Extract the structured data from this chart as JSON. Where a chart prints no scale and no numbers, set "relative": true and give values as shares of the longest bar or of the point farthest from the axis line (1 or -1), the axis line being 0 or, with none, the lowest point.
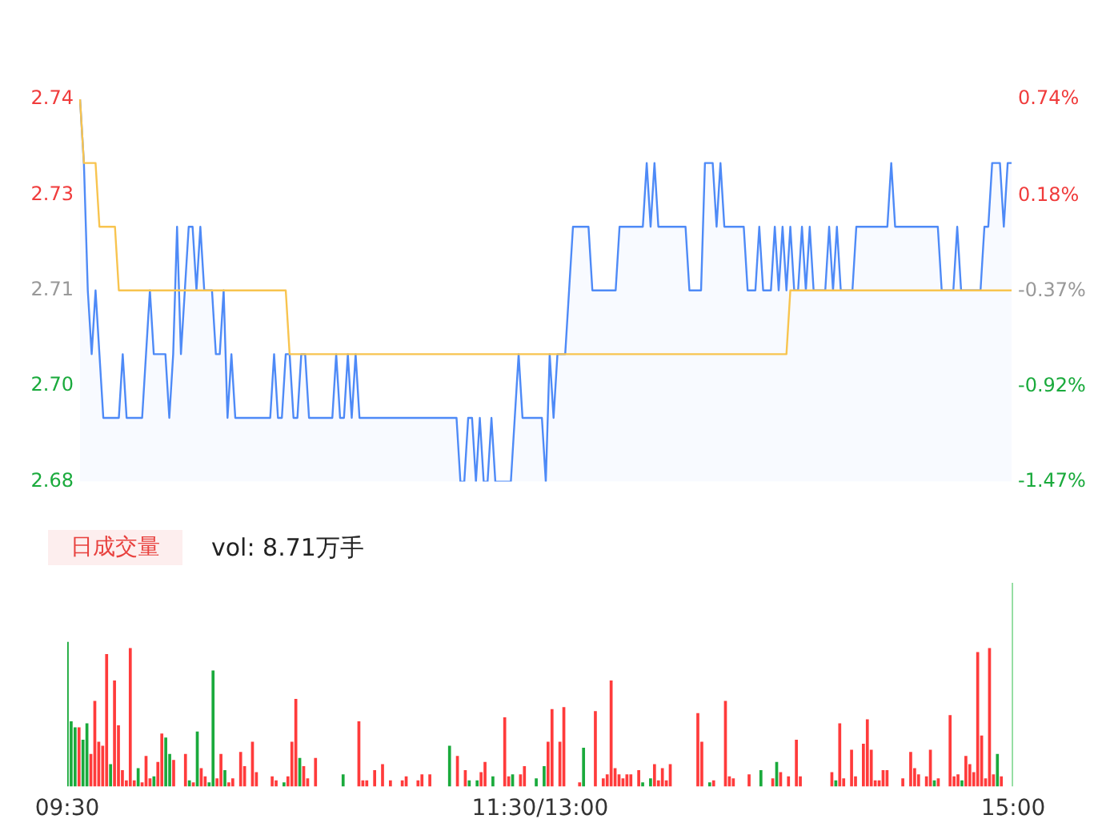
{
  "chart_data": [
    {
      "type": "line",
      "categories": [
        null,
        null,
        null,
        null,
        null,
        null,
        null,
        null,
        null,
        null,
        null,
        null,
        null,
        null,
        null,
        null,
        null,
        null,
        null,
        null,
        null,
        null,
        null,
        null,
        null,
        null,
        null,
        null,
        null,
        null,
        null,
        null,
        null,
        null,
        null,
        null,
        null,
        null,
        null,
        null,
        null,
        null,
        null,
        null,
        null,
        null,
        null,
        null,
        null,
        null,
        null,
        null,
        null,
        null,
        null,
        null,
        null,
        null,
        null,
        null,
        null,
        null,
        null,
        null,
        null,
        null,
        null,
        null,
        null,
        null,
        null,
        null,
        null,
        null,
        null,
        null,
        null,
        null,
        null,
        null,
        null,
        null,
        null,
        null,
        null,
        null,
        null,
        null,
        null,
        null,
        null,
        null,
        null,
        null,
        null,
        null,
        null,
        null,
        null,
        null,
        null,
        null,
        null,
        null,
        null,
        null,
        null,
        null,
        null,
        null,
        null,
        null,
        null,
        null,
        null,
        null,
        null,
        null,
        null,
        null,
        null,
        null,
        null,
        null,
        null,
        null,
        null,
        null,
        null,
        null,
        null,
        null,
        null,
        null,
        null,
        null,
        null,
        null,
        null,
        null,
        null,
        null,
        null,
        null,
        null,
        null,
        null,
        null,
        null,
        null,
        null,
        null,
        null,
        null,
        null,
        null,
        null,
        null,
        null,
        null,
        null,
        null,
        null,
        null,
        null,
        null,
        null,
        null,
        null,
        null,
        null,
        null,
        null,
        null,
        null,
        null,
        null,
        null,
        null,
        null,
        null,
        null,
        null,
        null,
        null,
        null,
        null,
        null,
        null,
        null,
        null,
        null,
        null,
        null,
        null,
        null,
        null,
        null,
        null,
        null,
        null,
        null,
        null,
        null,
        null,
        null,
        null,
        null,
        null,
        null,
        null,
        null,
        null,
        null,
        null,
        null,
        null,
        null,
        null,
        null,
        null,
        null,
        null,
        null,
        null,
        null,
        null,
        null,
        null,
        null,
        null,
        null,
        null,
        null,
        null,
        null,
        null,
        null,
        null,
        null,
        null
      ],
      "ylim": [
        2.68,
        2.74
      ],
      "yticks": [
        2.74,
        {
          "value": 2.725,
          "label": "2.73"
        },
        2.71,
        {
          "value": 2.695,
          "label": "2.70"
        },
        2.68
      ],
      "y2lim": [
        -1.47,
        0.74
      ],
      "y2ticks": [
        {
          "value": 0.74,
          "label": "0.74%"
        },
        {
          "value": 0.18,
          "label": "0.18%"
        },
        {
          "value": -0.37,
          "label": "-0.37%"
        },
        {
          "value": -0.92,
          "label": "-0.92%"
        },
        {
          "value": -1.47,
          "label": "-1.47%"
        }
      ],
      "tick_labels": "y",
      "marker": "none",
      "series": [
        {
          "type": "area",
          "color": "#4e8af7",
          "values": [
            2.74,
            2.73,
            2.71,
            2.7,
            2.71,
            2.7,
            2.69,
            2.69,
            2.69,
            2.69,
            2.69,
            2.7,
            2.69,
            2.69,
            2.69,
            2.69,
            2.69,
            2.7,
            2.71,
            2.7,
            2.7,
            2.7,
            2.7,
            2.69,
            2.7,
            2.72,
            2.7,
            2.71,
            2.72,
            2.72,
            2.71,
            2.72,
            2.71,
            2.71,
            2.71,
            2.7,
            2.7,
            2.71,
            2.69,
            2.7,
            2.69,
            2.69,
            2.69,
            2.69,
            2.69,
            2.69,
            2.69,
            2.69,
            2.69,
            2.69,
            2.7,
            2.69,
            2.69,
            2.7,
            2.7,
            2.69,
            2.69,
            2.7,
            2.7,
            2.69,
            2.69,
            2.69,
            2.69,
            2.69,
            2.69,
            2.69,
            2.7,
            2.69,
            2.69,
            2.7,
            2.69,
            2.7,
            2.69,
            2.69,
            2.69,
            2.69,
            2.69,
            2.69,
            2.69,
            2.69,
            2.69,
            2.69,
            2.69,
            2.69,
            2.69,
            2.69,
            2.69,
            2.69,
            2.69,
            2.69,
            2.69,
            2.69,
            2.69,
            2.69,
            2.69,
            2.69,
            2.69,
            2.69,
            2.68,
            2.68,
            2.69,
            2.69,
            2.68,
            2.69,
            2.68,
            2.68,
            2.69,
            2.68,
            2.68,
            2.68,
            2.68,
            2.68,
            2.69,
            2.7,
            2.69,
            2.69,
            2.69,
            2.69,
            2.69,
            2.69,
            2.68,
            2.7,
            2.69,
            2.7,
            2.7,
            2.7,
            2.71,
            2.72,
            2.72,
            2.72,
            2.72,
            2.72,
            2.71,
            2.71,
            2.71,
            2.71,
            2.71,
            2.71,
            2.71,
            2.72,
            2.72,
            2.72,
            2.72,
            2.72,
            2.72,
            2.72,
            2.73,
            2.72,
            2.73,
            2.72,
            2.72,
            2.72,
            2.72,
            2.72,
            2.72,
            2.72,
            2.72,
            2.71,
            2.71,
            2.71,
            2.71,
            2.73,
            2.73,
            2.73,
            2.72,
            2.73,
            2.72,
            2.72,
            2.72,
            2.72,
            2.72,
            2.72,
            2.71,
            2.71,
            2.71,
            2.72,
            2.71,
            2.71,
            2.71,
            2.72,
            2.71,
            2.72,
            2.71,
            2.72,
            2.71,
            2.71,
            2.72,
            2.71,
            2.72,
            2.71,
            2.71,
            2.71,
            2.71,
            2.72,
            2.71,
            2.72,
            2.71,
            2.71,
            2.71,
            2.71,
            2.72,
            2.72,
            2.72,
            2.72,
            2.72,
            2.72,
            2.72,
            2.72,
            2.72,
            2.73,
            2.72,
            2.72,
            2.72,
            2.72,
            2.72,
            2.72,
            2.72,
            2.72,
            2.72,
            2.72,
            2.72,
            2.72,
            2.71,
            2.71,
            2.71,
            2.71,
            2.72,
            2.71,
            2.71,
            2.71,
            2.71,
            2.71,
            2.71,
            2.72,
            2.72,
            2.73,
            2.73,
            2.73,
            2.72,
            2.73,
            2.73
          ]
        },
        {
          "type": "line",
          "color": "#f8c44f",
          "values": [
            2.74,
            2.73,
            2.73,
            2.73,
            2.73,
            2.72,
            2.72,
            2.72,
            2.72,
            2.72,
            2.71,
            2.71,
            2.71,
            2.71,
            2.71,
            2.71,
            2.71,
            2.71,
            2.71,
            2.71,
            2.71,
            2.71,
            2.71,
            2.71,
            2.71,
            2.71,
            2.71,
            2.71,
            2.71,
            2.71,
            2.71,
            2.71,
            2.71,
            2.71,
            2.71,
            2.71,
            2.71,
            2.71,
            2.71,
            2.71,
            2.71,
            2.71,
            2.71,
            2.71,
            2.71,
            2.71,
            2.71,
            2.71,
            2.71,
            2.71,
            2.71,
            2.71,
            2.71,
            2.71,
            2.7,
            2.7,
            2.7,
            2.7,
            2.7,
            2.7,
            2.7,
            2.7,
            2.7,
            2.7,
            2.7,
            2.7,
            2.7,
            2.7,
            2.7,
            2.7,
            2.7,
            2.7,
            2.7,
            2.7,
            2.7,
            2.7,
            2.7,
            2.7,
            2.7,
            2.7,
            2.7,
            2.7,
            2.7,
            2.7,
            2.7,
            2.7,
            2.7,
            2.7,
            2.7,
            2.7,
            2.7,
            2.7,
            2.7,
            2.7,
            2.7,
            2.7,
            2.7,
            2.7,
            2.7,
            2.7,
            2.7,
            2.7,
            2.7,
            2.7,
            2.7,
            2.7,
            2.7,
            2.7,
            2.7,
            2.7,
            2.7,
            2.7,
            2.7,
            2.7,
            2.7,
            2.7,
            2.7,
            2.7,
            2.7,
            2.7,
            2.7,
            2.7,
            2.7,
            2.7,
            2.7,
            2.7,
            2.7,
            2.7,
            2.7,
            2.7,
            2.7,
            2.7,
            2.7,
            2.7,
            2.7,
            2.7,
            2.7,
            2.7,
            2.7,
            2.7,
            2.7,
            2.7,
            2.7,
            2.7,
            2.7,
            2.7,
            2.7,
            2.7,
            2.7,
            2.7,
            2.7,
            2.7,
            2.7,
            2.7,
            2.7,
            2.7,
            2.7,
            2.7,
            2.7,
            2.7,
            2.7,
            2.7,
            2.7,
            2.7,
            2.7,
            2.7,
            2.7,
            2.7,
            2.7,
            2.7,
            2.7,
            2.7,
            2.7,
            2.7,
            2.7,
            2.7,
            2.7,
            2.7,
            2.7,
            2.7,
            2.7,
            2.7,
            2.7,
            2.71,
            2.71,
            2.71,
            2.71,
            2.71,
            2.71,
            2.71,
            2.71,
            2.71,
            2.71,
            2.71,
            2.71,
            2.71,
            2.71,
            2.71,
            2.71,
            2.71,
            2.71,
            2.71,
            2.71,
            2.71,
            2.71,
            2.71,
            2.71,
            2.71,
            2.71,
            2.71,
            2.71,
            2.71,
            2.71,
            2.71,
            2.71,
            2.71,
            2.71,
            2.71,
            2.71,
            2.71,
            2.71,
            2.71,
            2.71,
            2.71,
            2.71,
            2.71,
            2.71,
            2.71,
            2.71,
            2.71,
            2.71,
            2.71,
            2.71,
            2.71,
            2.71,
            2.71,
            2.71,
            2.71,
            2.71,
            2.71,
            2.71
          ]
        }
      ]
    },
    {
      "type": "bar",
      "title": "日成交量",
      "annotations": [
        "vol: 8.71万手"
      ],
      "relative": true,
      "tick_labels": "x",
      "categories": [
        "09:30",
        null,
        null,
        null,
        null,
        null,
        null,
        null,
        null,
        null,
        null,
        null,
        null,
        null,
        null,
        null,
        null,
        null,
        null,
        null,
        null,
        null,
        null,
        null,
        null,
        null,
        null,
        null,
        null,
        null,
        null,
        null,
        null,
        null,
        null,
        null,
        null,
        null,
        null,
        null,
        null,
        null,
        null,
        null,
        null,
        null,
        null,
        null,
        null,
        null,
        null,
        null,
        null,
        null,
        null,
        null,
        null,
        null,
        null,
        null,
        null,
        null,
        null,
        null,
        null,
        null,
        null,
        null,
        null,
        null,
        null,
        null,
        null,
        null,
        null,
        null,
        null,
        null,
        null,
        null,
        null,
        null,
        null,
        null,
        null,
        null,
        null,
        null,
        null,
        null,
        null,
        null,
        null,
        null,
        null,
        null,
        null,
        null,
        null,
        null,
        null,
        null,
        null,
        null,
        null,
        null,
        null,
        null,
        null,
        null,
        null,
        null,
        null,
        null,
        null,
        null,
        null,
        null,
        null,
        null,
        "11:30/13:00",
        null,
        null,
        null,
        null,
        null,
        null,
        null,
        null,
        null,
        null,
        null,
        null,
        null,
        null,
        null,
        null,
        null,
        null,
        null,
        null,
        null,
        null,
        null,
        null,
        null,
        null,
        null,
        null,
        null,
        null,
        null,
        null,
        null,
        null,
        null,
        null,
        null,
        null,
        null,
        null,
        null,
        null,
        null,
        null,
        null,
        null,
        null,
        null,
        null,
        null,
        null,
        null,
        null,
        null,
        null,
        null,
        null,
        null,
        null,
        null,
        null,
        null,
        null,
        null,
        null,
        null,
        null,
        null,
        null,
        null,
        null,
        null,
        null,
        null,
        null,
        null,
        null,
        null,
        null,
        null,
        null,
        null,
        null,
        null,
        null,
        null,
        null,
        null,
        null,
        null,
        null,
        null,
        null,
        null,
        null,
        null,
        null,
        null,
        null,
        null,
        null,
        null,
        null,
        null,
        null,
        null,
        null,
        null,
        null,
        null,
        null,
        null,
        null,
        null,
        null,
        null,
        null,
        null,
        null,
        "15:00"
      ],
      "values": [
        0.71,
        0.32,
        0.29,
        0.29,
        0.23,
        0.31,
        0.16,
        0.42,
        0.22,
        0.2,
        0.65,
        0.11,
        0.52,
        0.3,
        0.08,
        0.03,
        0.68,
        0.03,
        0.09,
        0.02,
        0.15,
        0.04,
        0.05,
        0.12,
        0.26,
        0.24,
        0.16,
        0.13,
        null,
        null,
        0.16,
        0.03,
        0.02,
        0.27,
        0.09,
        0.05,
        0.02,
        0.57,
        0.04,
        0.16,
        0.08,
        0.02,
        0.04,
        null,
        0.17,
        0.1,
        null,
        0.22,
        0.07,
        null,
        null,
        null,
        0.05,
        0.03,
        null,
        0.02,
        0.05,
        0.22,
        0.43,
        0.14,
        0.1,
        0.04,
        null,
        0.14,
        null,
        null,
        null,
        null,
        null,
        null,
        0.06,
        null,
        null,
        null,
        0.32,
        0.03,
        0.03,
        null,
        0.08,
        null,
        0.11,
        null,
        0.03,
        null,
        null,
        0.03,
        0.05,
        null,
        null,
        0.03,
        0.06,
        null,
        0.06,
        null,
        null,
        null,
        null,
        0.2,
        null,
        0.15,
        null,
        0.08,
        0.03,
        null,
        0.03,
        0.07,
        0.12,
        null,
        0.05,
        null,
        null,
        0.34,
        0.05,
        0.06,
        null,
        0.06,
        0.1,
        null,
        null,
        0.04,
        null,
        0.1,
        0.22,
        0.38,
        null,
        0.22,
        0.39,
        null,
        null,
        null,
        0.02,
        0.19,
        null,
        null,
        0.37,
        null,
        0.04,
        0.06,
        0.52,
        0.09,
        0.06,
        0.04,
        0.06,
        0.06,
        null,
        0.08,
        0.02,
        null,
        0.04,
        0.11,
        0.03,
        0.09,
        0.03,
        0.11,
        null,
        null,
        null,
        null,
        null,
        null,
        0.36,
        0.22,
        null,
        0.02,
        0.03,
        null,
        null,
        0.42,
        0.05,
        0.04,
        null,
        null,
        null,
        0.06,
        null,
        null,
        0.08,
        null,
        null,
        0.04,
        0.12,
        0.07,
        null,
        0.05,
        null,
        0.23,
        0.05,
        null,
        null,
        null,
        null,
        null,
        null,
        null,
        0.07,
        0.03,
        0.31,
        0.04,
        null,
        0.18,
        0.05,
        null,
        0.21,
        0.33,
        0.18,
        0.03,
        0.03,
        0.08,
        0.08,
        null,
        null,
        null,
        0.04,
        null,
        0.17,
        0.09,
        0.06,
        null,
        0.05,
        0.18,
        0.03,
        0.04,
        null,
        null,
        0.35,
        0.05,
        0.06,
        0.03,
        0.15,
        0.11,
        0.07,
        0.66,
        0.25,
        0.04,
        0.68,
        0.06,
        0.16,
        0.05,
        null,
        null,
        1
      ],
      "colors": [
        "#1aaa3c",
        "#1aaa3c",
        "#1aaa3c",
        "#ff3b3b",
        "#1aaa3c",
        "#1aaa3c",
        "#ff3b3b",
        "#ff3b3b",
        "#ff3b3b",
        "#ff3b3b",
        "#ff3b3b",
        "#1aaa3c",
        "#ff3b3b",
        "#ff3b3b",
        "#ff3b3b",
        "#ff3b3b",
        "#ff3b3b",
        "#ff3b3b",
        "#1aaa3c",
        "#ff3b3b",
        "#ff3b3b",
        "#ff3b3b",
        "#1aaa3c",
        "#ff3b3b",
        "#ff3b3b",
        "#1aaa3c",
        "#1aaa3c",
        "#ff3b3b",
        "#ff3b3b",
        "#ff3b3b",
        "#ff3b3b",
        "#1aaa3c",
        "#ff3b3b",
        "#1aaa3c",
        "#ff3b3b",
        "#ff3b3b",
        "#1aaa3c",
        "#1aaa3c",
        "#ff3b3b",
        "#ff3b3b",
        "#1aaa3c",
        "#ff3b3b",
        "#ff3b3b",
        "#ff3b3b",
        "#ff3b3b",
        "#ff3b3b",
        "#ff3b3b",
        "#ff3b3b",
        "#ff3b3b",
        "#ff3b3b",
        "#ff3b3b",
        "#ff3b3b",
        "#ff3b3b",
        "#ff3b3b",
        "#ff3b3b",
        "#1aaa3c",
        "#ff3b3b",
        "#ff3b3b",
        "#ff3b3b",
        "#1aaa3c",
        "#ff3b3b",
        "#ff3b3b",
        "#ff3b3b",
        "#ff3b3b",
        "#ff3b3b",
        "#ff3b3b",
        "#ff3b3b",
        "#ff3b3b",
        "#ff3b3b",
        "#ff3b3b",
        "#1aaa3c",
        "#ff3b3b",
        "#ff3b3b",
        "#ff3b3b",
        "#ff3b3b",
        "#ff3b3b",
        "#ff3b3b",
        "#ff3b3b",
        "#ff3b3b",
        "#ff3b3b",
        "#ff3b3b",
        "#ff3b3b",
        "#ff3b3b",
        "#ff3b3b",
        "#ff3b3b",
        "#ff3b3b",
        "#ff3b3b",
        "#ff3b3b",
        "#ff3b3b",
        "#ff3b3b",
        "#ff3b3b",
        "#ff3b3b",
        "#ff3b3b",
        "#ff3b3b",
        "#ff3b3b",
        "#ff3b3b",
        "#ff3b3b",
        "#1aaa3c",
        "#ff3b3b",
        "#ff3b3b",
        "#ff3b3b",
        "#ff3b3b",
        "#1aaa3c",
        "#ff3b3b",
        "#1aaa3c",
        "#ff3b3b",
        "#ff3b3b",
        "#ff3b3b",
        "#1aaa3c",
        "#ff3b3b",
        "#ff3b3b",
        "#ff3b3b",
        "#ff3b3b",
        "#1aaa3c",
        "#ff3b3b",
        "#ff3b3b",
        "#ff3b3b",
        "#ff3b3b",
        "#ff3b3b",
        "#1aaa3c",
        "#ff3b3b",
        "#1aaa3c",
        "#ff3b3b",
        "#ff3b3b",
        "#ff3b3b",
        "#ff3b3b",
        "#ff3b3b",
        "#ff3b3b",
        "#ff3b3b",
        "#ff3b3b",
        "#ff3b3b",
        "#1aaa3c",
        "#ff3b3b",
        "#ff3b3b",
        "#ff3b3b",
        "#ff3b3b",
        "#ff3b3b",
        "#ff3b3b",
        "#ff3b3b",
        "#ff3b3b",
        "#ff3b3b",
        "#ff3b3b",
        "#ff3b3b",
        "#ff3b3b",
        "#ff3b3b",
        "#ff3b3b",
        "#1aaa3c",
        "#ff3b3b",
        "#1aaa3c",
        "#ff3b3b",
        "#ff3b3b",
        "#ff3b3b",
        "#ff3b3b",
        "#ff3b3b",
        "#ff3b3b",
        "#ff3b3b",
        "#ff3b3b",
        "#ff3b3b",
        "#ff3b3b",
        "#ff3b3b",
        "#ff3b3b",
        "#ff3b3b",
        "#ff3b3b",
        "#1aaa3c",
        "#ff3b3b",
        "#ff3b3b",
        "#ff3b3b",
        "#ff3b3b",
        "#ff3b3b",
        "#ff3b3b",
        "#ff3b3b",
        "#ff3b3b",
        "#ff3b3b",
        "#ff3b3b",
        "#ff3b3b",
        "#ff3b3b",
        "#1aaa3c",
        "#ff3b3b",
        "#ff3b3b",
        "#ff3b3b",
        "#1aaa3c",
        "#ff3b3b",
        "#ff3b3b",
        "#ff3b3b",
        "#ff3b3b",
        "#ff3b3b",
        "#ff3b3b",
        "#ff3b3b",
        "#ff3b3b",
        "#ff3b3b",
        "#ff3b3b",
        "#ff3b3b",
        "#ff3b3b",
        "#ff3b3b",
        "#ff3b3b",
        "#1aaa3c",
        "#ff3b3b",
        "#ff3b3b",
        "#ff3b3b",
        "#ff3b3b",
        "#ff3b3b",
        "#ff3b3b",
        "#ff3b3b",
        "#ff3b3b",
        "#ff3b3b",
        "#ff3b3b",
        "#ff3b3b",
        "#ff3b3b",
        "#ff3b3b",
        "#ff3b3b",
        "#ff3b3b",
        "#ff3b3b",
        "#ff3b3b",
        "#ff3b3b",
        "#ff3b3b",
        "#ff3b3b",
        "#ff3b3b",
        "#ff3b3b",
        "#ff3b3b",
        "#ff3b3b",
        "#1aaa3c",
        "#ff3b3b",
        "#ff3b3b",
        "#ff3b3b",
        "#ff3b3b",
        "#ff3b3b",
        "#ff3b3b",
        "#1aaa3c",
        "#ff3b3b",
        "#ff3b3b",
        "#ff3b3b",
        "#ff3b3b",
        "#ff3b3b",
        "#ff3b3b",
        "#ff3b3b",
        "#ff3b3b",
        "#1aaa3c",
        "#ff3b3b",
        "#ff3b3b",
        "#ff3b3b",
        "#8fdc9d"
      ]
    }
  ]
}
